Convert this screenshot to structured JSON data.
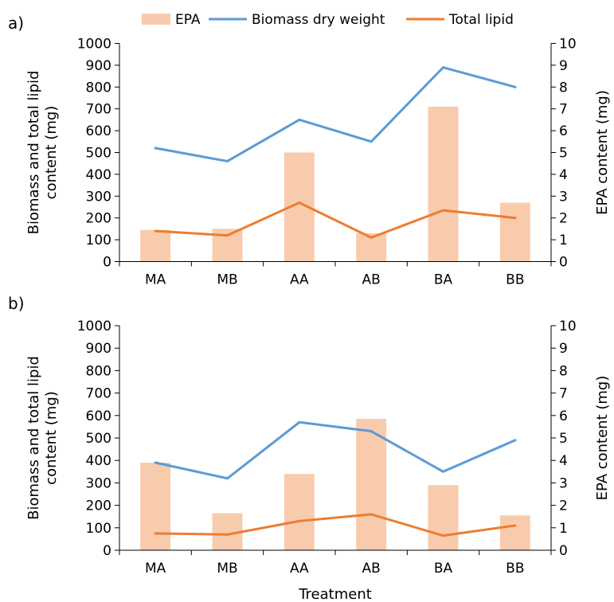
{
  "legend": [
    {
      "label": "EPA",
      "kind": "bar",
      "color": "#f8cbad"
    },
    {
      "label": "Biomass dry weight",
      "kind": "line",
      "color": "#5b9bd5"
    },
    {
      "label": "Total lipid",
      "kind": "line",
      "color": "#ed7d31"
    }
  ],
  "xlabel": "Treatment",
  "chart_data": [
    {
      "panel_label": "a)",
      "type": "bar",
      "categories": [
        "MA",
        "MB",
        "AA",
        "AB",
        "BA",
        "BB"
      ],
      "ylabel": "Biomass and total lipid content (mg)",
      "y2label": "EPA content (mg)",
      "ylim": [
        0,
        1000
      ],
      "y2lim": [
        0,
        10
      ],
      "yticks": [
        "0",
        "100",
        "200",
        "300",
        "400",
        "500",
        "600",
        "700",
        "800",
        "900",
        "1000"
      ],
      "y2ticks": [
        "0",
        "1",
        "2",
        "3",
        "4",
        "5",
        "6",
        "7",
        "8",
        "9",
        "10"
      ],
      "series": [
        {
          "name": "EPA",
          "type": "bar",
          "axis": "right",
          "color": "#f8cbad",
          "values": [
            1.45,
            1.5,
            5.0,
            1.3,
            7.1,
            2.7
          ]
        },
        {
          "name": "Biomass dry weight",
          "type": "line",
          "axis": "left",
          "color": "#5b9bd5",
          "values": [
            520,
            460,
            650,
            550,
            890,
            800
          ]
        },
        {
          "name": "Total lipid",
          "type": "line",
          "axis": "left",
          "color": "#ed7d31",
          "values": [
            140,
            120,
            270,
            110,
            235,
            200
          ]
        }
      ]
    },
    {
      "panel_label": "b)",
      "type": "bar",
      "categories": [
        "MA",
        "MB",
        "AA",
        "AB",
        "BA",
        "BB"
      ],
      "ylabel": "Biomass and total lipid content (mg)",
      "y2label": "EPA content (mg)",
      "ylim": [
        0,
        1000
      ],
      "y2lim": [
        0,
        10
      ],
      "yticks": [
        "0",
        "100",
        "200",
        "300",
        "400",
        "500",
        "600",
        "700",
        "800",
        "900",
        "1000"
      ],
      "y2ticks": [
        "0",
        "1",
        "2",
        "3",
        "4",
        "5",
        "6",
        "7",
        "8",
        "9",
        "10"
      ],
      "series": [
        {
          "name": "EPA",
          "type": "bar",
          "axis": "right",
          "color": "#f8cbad",
          "values": [
            3.9,
            1.65,
            3.4,
            5.85,
            2.9,
            1.55
          ]
        },
        {
          "name": "Biomass dry weight",
          "type": "line",
          "axis": "left",
          "color": "#5b9bd5",
          "values": [
            390,
            320,
            570,
            530,
            350,
            490
          ]
        },
        {
          "name": "Total lipid",
          "type": "line",
          "axis": "left",
          "color": "#ed7d31",
          "values": [
            75,
            70,
            130,
            160,
            65,
            110
          ]
        }
      ]
    }
  ]
}
